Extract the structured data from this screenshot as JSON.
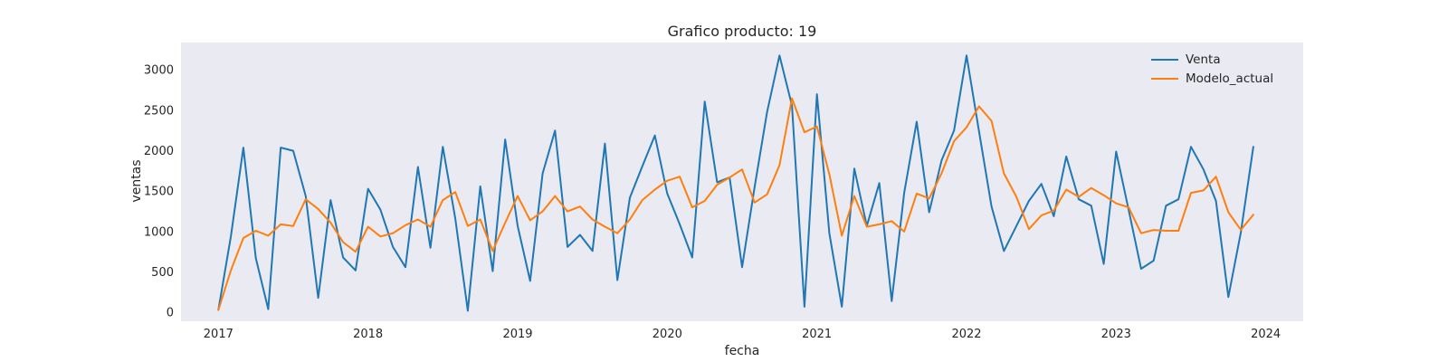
{
  "chart_data": {
    "type": "line",
    "title": "Grafico producto: 19",
    "xlabel": "fecha",
    "ylabel": "ventas",
    "x_start": "2017-01",
    "x_ticks": [
      "2017",
      "2018",
      "2019",
      "2020",
      "2021",
      "2022",
      "2023",
      "2024"
    ],
    "y_ticks": [
      0,
      500,
      1000,
      1500,
      2000,
      2500,
      3000
    ],
    "xlim": [
      "2016-10",
      "2024-04"
    ],
    "ylim": [
      -100,
      3350
    ],
    "grid": false,
    "legend_position": "top-right",
    "background": "#eaeaf2",
    "series": [
      {
        "name": "Venta",
        "color": "#1f77b4",
        "values": [
          40,
          950,
          2050,
          680,
          50,
          2050,
          2010,
          1450,
          190,
          1400,
          690,
          530,
          1540,
          1280,
          820,
          570,
          1810,
          810,
          2060,
          1170,
          30,
          1570,
          520,
          2150,
          1080,
          400,
          1730,
          2260,
          820,
          970,
          770,
          2100,
          410,
          1430,
          1820,
          2200,
          1480,
          1100,
          690,
          2620,
          1620,
          1680,
          570,
          1560,
          2490,
          3190,
          2570,
          80,
          2710,
          990,
          80,
          1790,
          1080,
          1610,
          150,
          1490,
          2370,
          1250,
          1890,
          2260,
          3190,
          2250,
          1320,
          770,
          1080,
          1390,
          1600,
          1200,
          1940,
          1410,
          1330,
          610,
          2000,
          1280,
          550,
          650,
          1330,
          1410,
          2060,
          1780,
          1390,
          200,
          1000,
          2060
        ]
      },
      {
        "name": "Modelo_actual",
        "color": "#ff7f0e",
        "values": [
          40,
          530,
          930,
          1020,
          960,
          1100,
          1080,
          1410,
          1290,
          1120,
          880,
          760,
          1070,
          950,
          990,
          1090,
          1160,
          1070,
          1400,
          1500,
          1080,
          1160,
          770,
          1120,
          1450,
          1150,
          1260,
          1450,
          1260,
          1320,
          1160,
          1070,
          990,
          1160,
          1400,
          1530,
          1640,
          1690,
          1310,
          1390,
          1590,
          1680,
          1780,
          1370,
          1470,
          1830,
          2660,
          2240,
          2310,
          1720,
          960,
          1450,
          1070,
          1100,
          1140,
          1010,
          1480,
          1420,
          1730,
          2130,
          2300,
          2560,
          2380,
          1730,
          1440,
          1040,
          1210,
          1270,
          1530,
          1440,
          1550,
          1460,
          1360,
          1310,
          990,
          1030,
          1020,
          1020,
          1490,
          1520,
          1690,
          1250,
          1030,
          1220
        ]
      }
    ]
  }
}
